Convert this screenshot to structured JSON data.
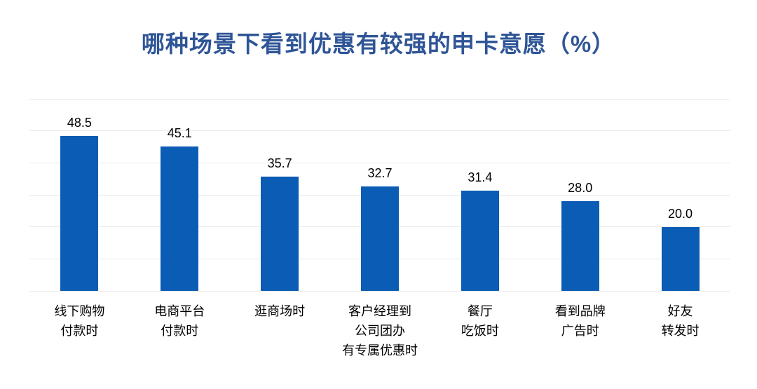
{
  "title": "哪种场景下看到优惠有较强的申卡意愿（%）",
  "colors": {
    "title_blue": "#2F5597",
    "bar_blue": "#0B5CB4",
    "gridline_gray": "#e9e9e9",
    "label_black": "#000000"
  },
  "chart_data": {
    "type": "bar",
    "title": "哪种场景下看到优惠有较强的申卡意愿（%）",
    "categories": [
      "线下购物\n付款时",
      "电商平台\n付款时",
      "逛商场时",
      "客户经理到\n公司团办\n有专属优惠时",
      "餐厅\n吃饭时",
      "看到品牌\n广告时",
      "好友\n转发时"
    ],
    "values": [
      48.5,
      45.1,
      35.7,
      32.7,
      31.4,
      28.0,
      20.0
    ],
    "data_labels": [
      "48.5",
      "45.1",
      "35.7",
      "32.7",
      "31.4",
      "28.0",
      "20.0"
    ],
    "xlabel": "",
    "ylabel": "",
    "ylim": [
      0,
      60
    ],
    "gridline_interval": 10,
    "grid": true,
    "legend": false,
    "y_axis_tick_labels_visible": false
  }
}
